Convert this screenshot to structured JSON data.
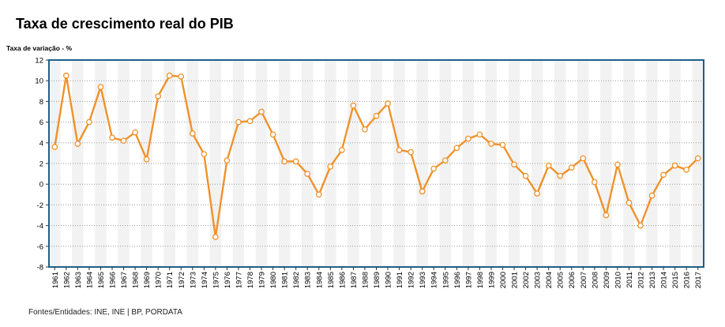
{
  "chart_data": {
    "type": "line",
    "title": "Taxa de crescimento real do PIB",
    "ylabel": "Taxa de variação - %",
    "source": "Fontes/Entidades: INE, INE | BP, PORDATA",
    "ylim": [
      -8,
      12
    ],
    "yticks": [
      -8,
      -6,
      -4,
      -2,
      0,
      2,
      4,
      6,
      8,
      10,
      12
    ],
    "grid": true,
    "line_color": "#f0922b",
    "frame_color": "#1f5f8b",
    "x": [
      "1961",
      "1962",
      "1963",
      "1964",
      "1965",
      "1966",
      "1967",
      "1968",
      "1969",
      "1970",
      "1971",
      "1972",
      "1973",
      "1974",
      "1975",
      "1976",
      "1977",
      "1978",
      "1979",
      "1980",
      "1981",
      "1982",
      "1983",
      "1984",
      "1985",
      "1986",
      "1987",
      "1988",
      "1989",
      "1990",
      "1991",
      "1992",
      "1993",
      "1994",
      "1995",
      "1996",
      "1997",
      "1998",
      "1999",
      "2000",
      "2001",
      "2002",
      "2003",
      "2004",
      "2005",
      "2006",
      "2007",
      "2008",
      "2009",
      "2010",
      "2011",
      "2012",
      "2013",
      "2014",
      "2015",
      "2016",
      "2017"
    ],
    "series": [
      {
        "values": [
          3.6,
          10.5,
          3.9,
          6.0,
          9.4,
          4.5,
          4.2,
          5.0,
          2.4,
          8.5,
          10.5,
          10.4,
          4.9,
          2.9,
          -5.1,
          2.3,
          6.0,
          6.1,
          7.0,
          4.8,
          2.2,
          2.2,
          1.0,
          -1.0,
          1.7,
          3.3,
          7.6,
          5.3,
          6.6,
          7.8,
          3.3,
          3.1,
          -0.7,
          1.5,
          2.3,
          3.5,
          4.4,
          4.8,
          3.9,
          3.8,
          1.9,
          0.8,
          -0.9,
          1.8,
          0.8,
          1.6,
          2.5,
          0.2,
          -3.0,
          1.9,
          -1.8,
          -4.0,
          -1.1,
          0.9,
          1.8,
          1.4,
          2.5
        ]
      }
    ]
  }
}
